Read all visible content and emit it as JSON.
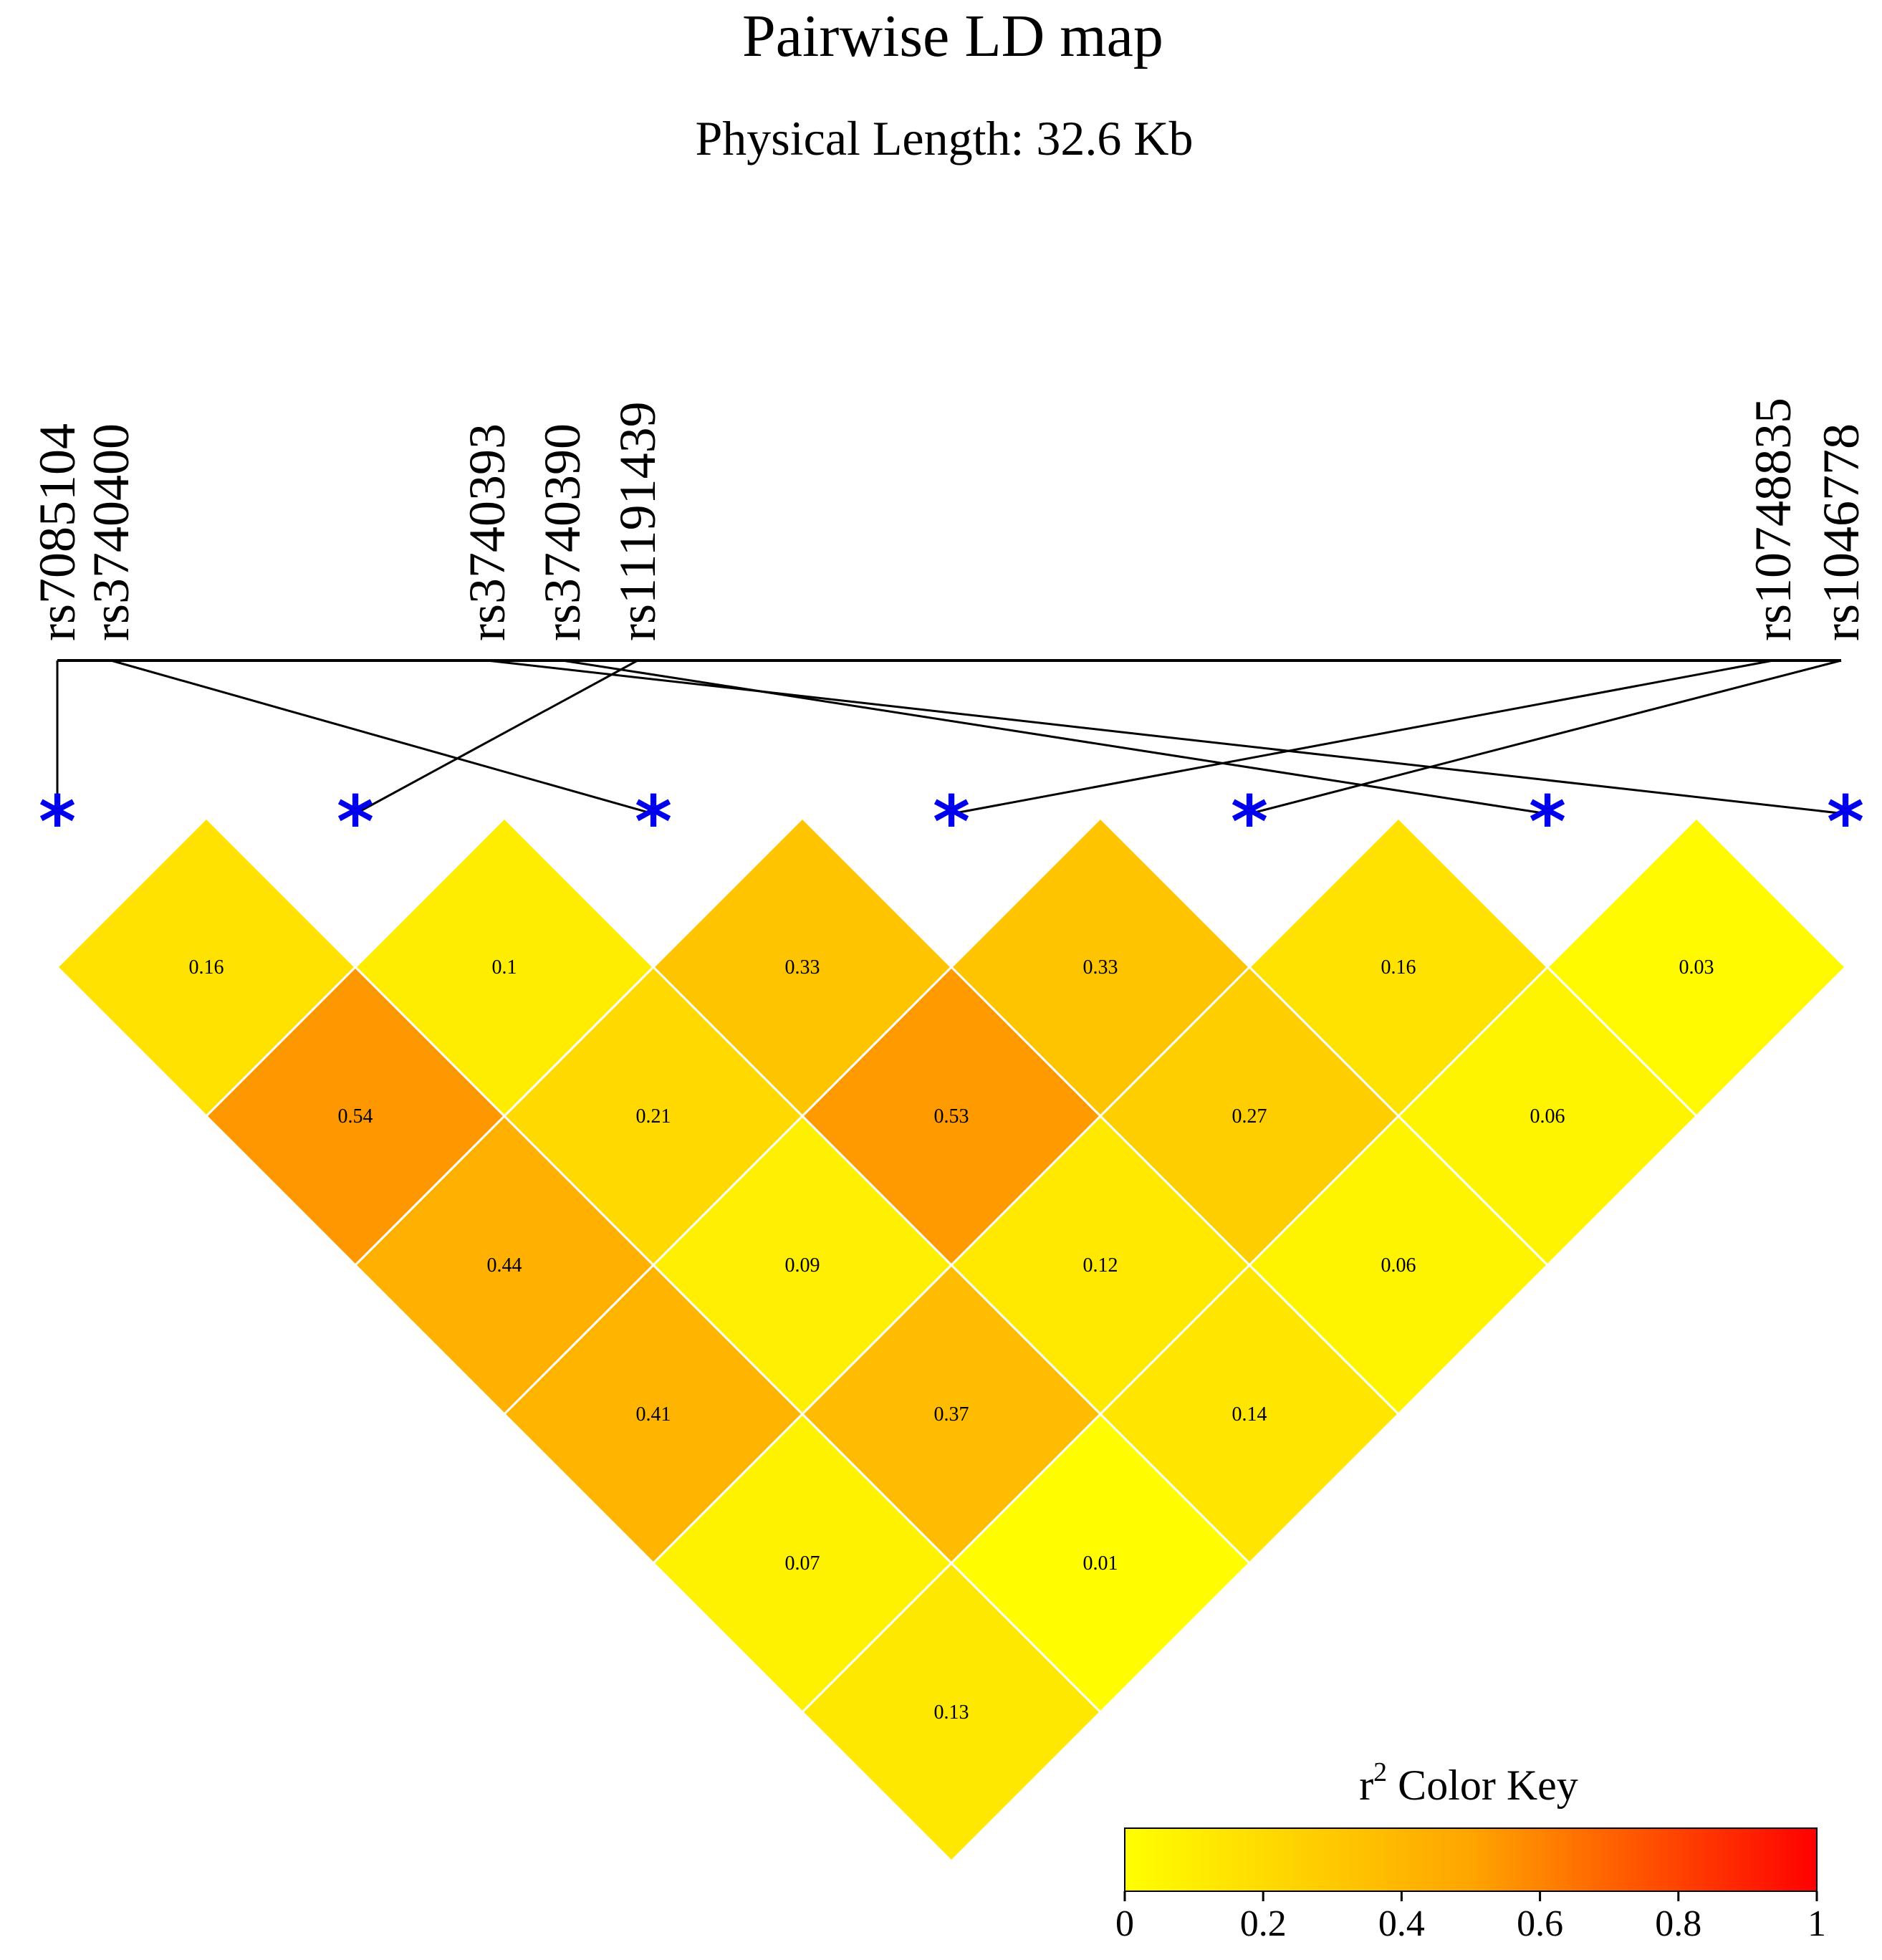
{
  "chart_data": {
    "type": "heatmap",
    "title": "Pairwise LD map",
    "subtitle": "Physical Length: 32.6 Kb",
    "snps": [
      "rs7085104",
      "rs3740400",
      "rs3740393",
      "rs3740390",
      "rs11191439",
      "rs10748835",
      "rs1046778"
    ],
    "snp_to_position_order": [
      0,
      2,
      6,
      5,
      1,
      3,
      4
    ],
    "position_count": 7,
    "cells": [
      {
        "i": 0,
        "j": 1,
        "r2": 0.16
      },
      {
        "i": 1,
        "j": 2,
        "r2": 0.1
      },
      {
        "i": 2,
        "j": 3,
        "r2": 0.33
      },
      {
        "i": 3,
        "j": 4,
        "r2": 0.33
      },
      {
        "i": 4,
        "j": 5,
        "r2": 0.16
      },
      {
        "i": 5,
        "j": 6,
        "r2": 0.03
      },
      {
        "i": 0,
        "j": 2,
        "r2": 0.54
      },
      {
        "i": 1,
        "j": 3,
        "r2": 0.21
      },
      {
        "i": 2,
        "j": 4,
        "r2": 0.53
      },
      {
        "i": 3,
        "j": 5,
        "r2": 0.27
      },
      {
        "i": 4,
        "j": 6,
        "r2": 0.06
      },
      {
        "i": 0,
        "j": 3,
        "r2": 0.44
      },
      {
        "i": 1,
        "j": 4,
        "r2": 0.09
      },
      {
        "i": 2,
        "j": 5,
        "r2": 0.12
      },
      {
        "i": 3,
        "j": 6,
        "r2": 0.06
      },
      {
        "i": 0,
        "j": 4,
        "r2": 0.41
      },
      {
        "i": 1,
        "j": 5,
        "r2": 0.37
      },
      {
        "i": 2,
        "j": 6,
        "r2": 0.14
      },
      {
        "i": 0,
        "j": 5,
        "r2": 0.07
      },
      {
        "i": 1,
        "j": 6,
        "r2": 0.01
      },
      {
        "i": 0,
        "j": 6,
        "r2": 0.13
      }
    ],
    "color_key": {
      "title": "Color Key",
      "title_prefix": "r",
      "title_superscript": "2",
      "range": [
        0,
        1
      ],
      "ticks": [
        "0",
        "0.2",
        "0.4",
        "0.6",
        "0.8",
        "1"
      ],
      "colors": {
        "low": "#ffff00",
        "mid": "#ffa500",
        "high": "#ff0000"
      }
    },
    "marker_color": "#0000ee",
    "marker_symbol": "*"
  }
}
